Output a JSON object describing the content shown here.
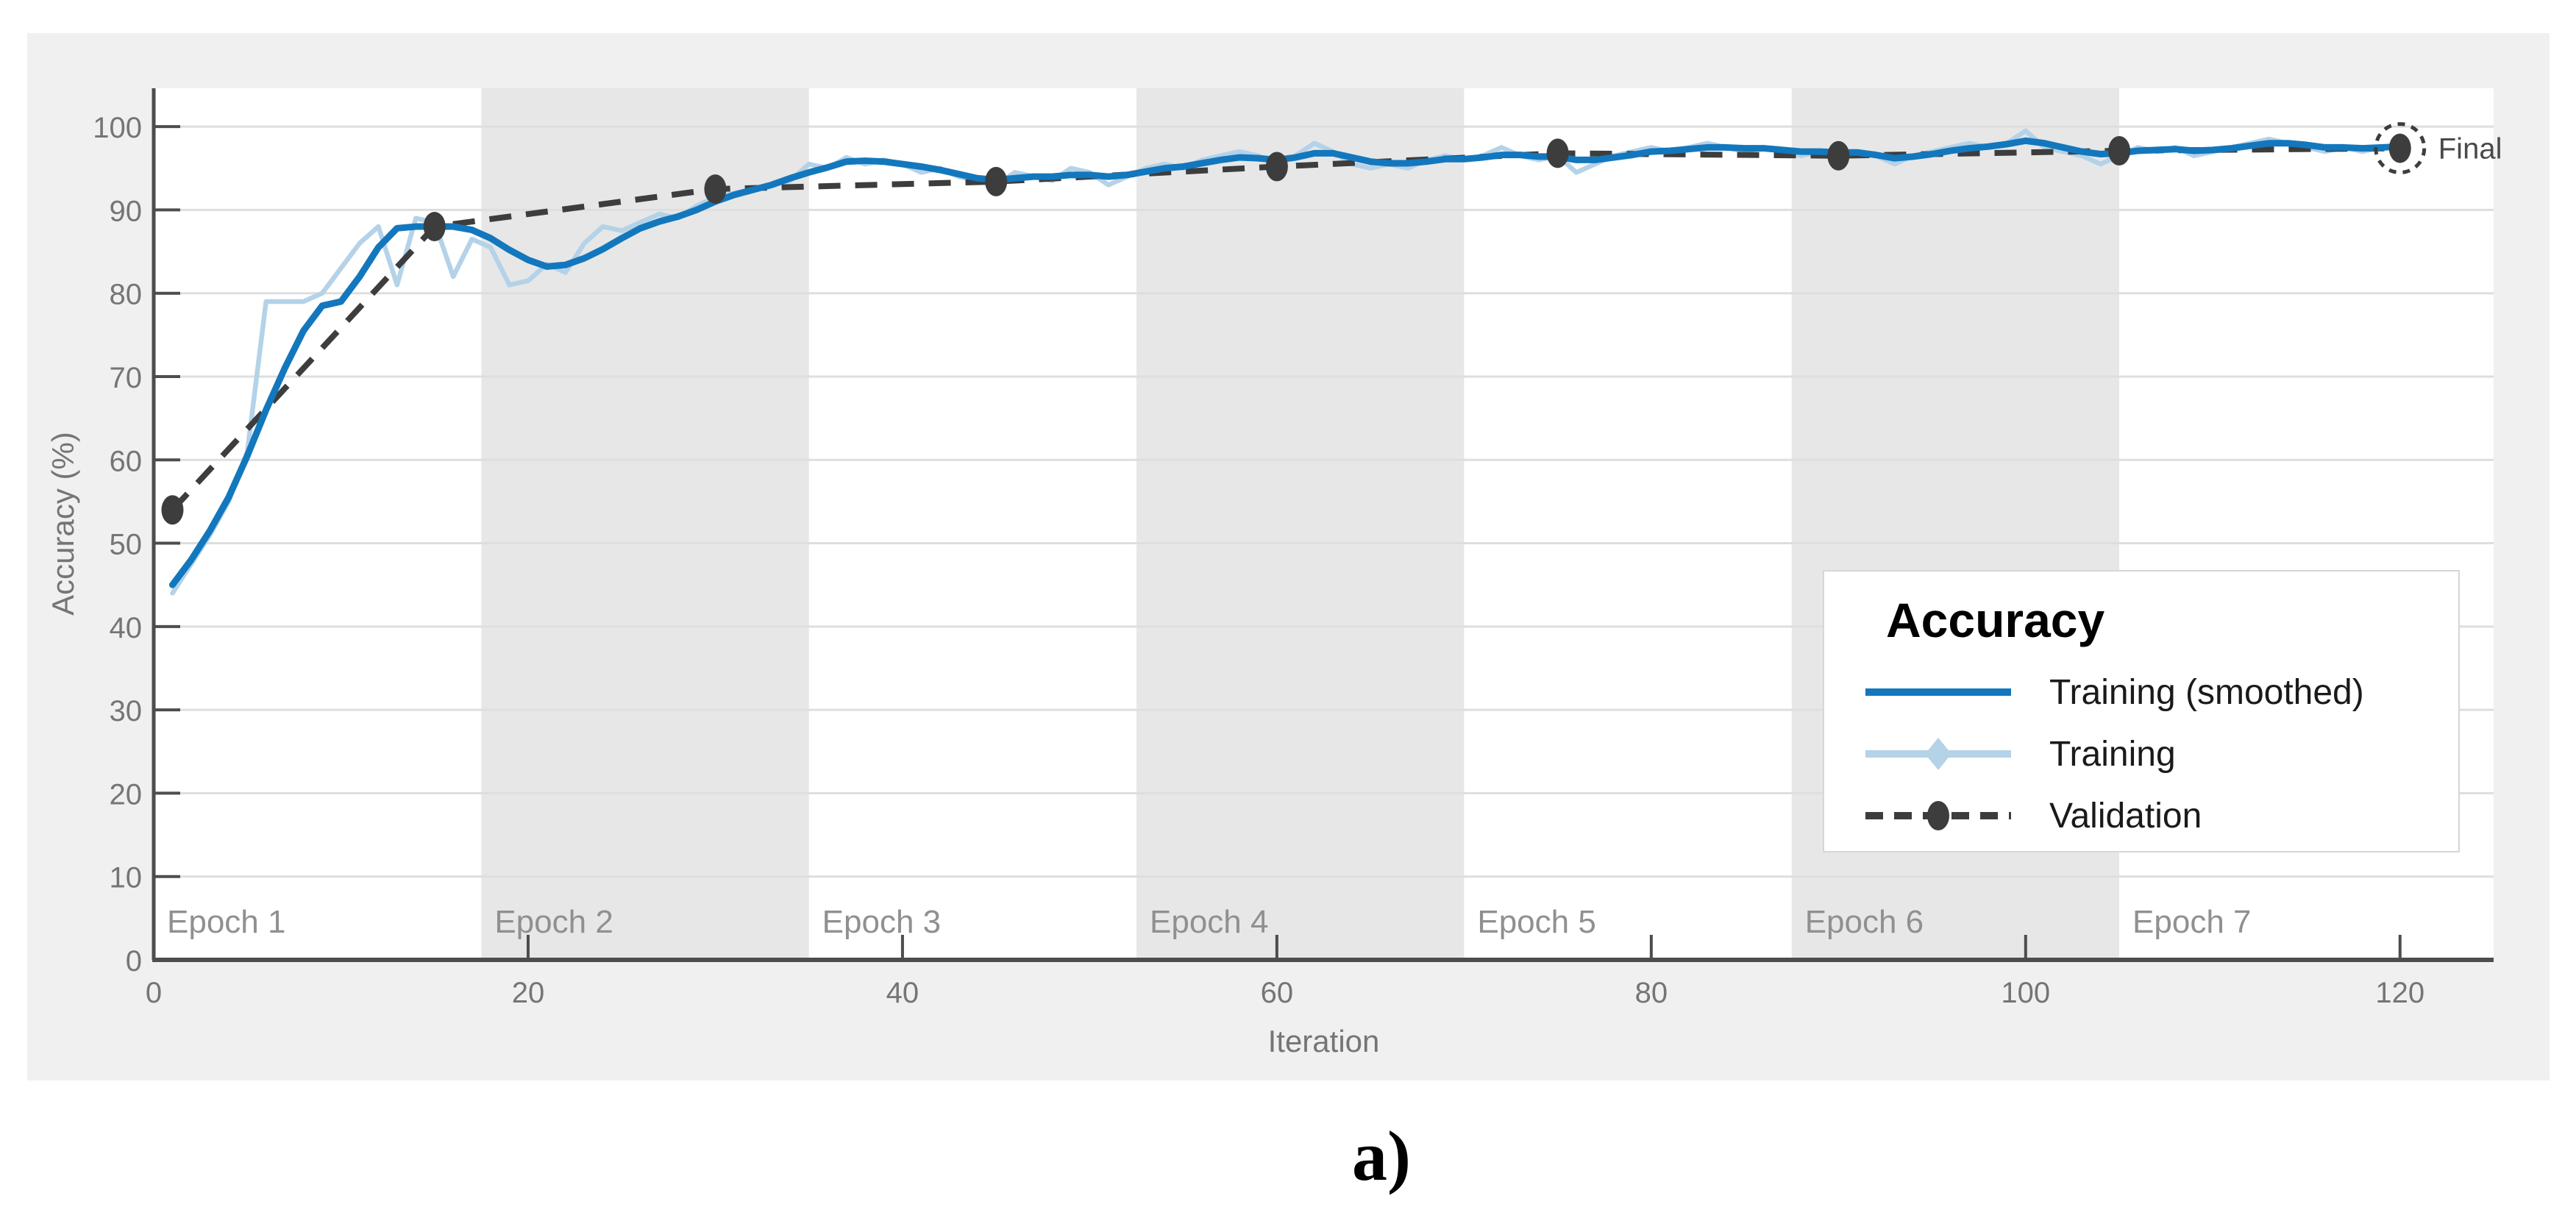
{
  "figure": {
    "caption": "a)"
  },
  "colors": {
    "panel_background": "#f0f0f0",
    "plot_background": "#ffffff",
    "epoch_band": "#e7e7e7",
    "gridline": "#dedede",
    "axis": "#4d4d4d",
    "tick_label": "#757575",
    "epoch_label": "#909090",
    "final_label": "#4a4a4a",
    "training_smoothed": "#1377bd",
    "training_raw": "#b4d2e8",
    "validation": "#3d3d3d"
  },
  "chart_data": {
    "type": "line",
    "title": "",
    "xlabel": "Iteration",
    "ylabel": "Accuracy (%)",
    "xlim": [
      0,
      125
    ],
    "ylim": [
      0,
      104.6
    ],
    "xticks": [
      0,
      20,
      40,
      60,
      80,
      100,
      120
    ],
    "yticks": [
      0,
      10,
      20,
      30,
      40,
      50,
      60,
      70,
      80,
      90,
      100
    ],
    "grid": "horizontal",
    "legend_position": "bottom-right",
    "epochs": [
      {
        "label": "Epoch 1",
        "start": 0,
        "end": 17.5,
        "shaded": false
      },
      {
        "label": "Epoch 2",
        "start": 17.5,
        "end": 35,
        "shaded": true
      },
      {
        "label": "Epoch 3",
        "start": 35,
        "end": 52.5,
        "shaded": false
      },
      {
        "label": "Epoch 4",
        "start": 52.5,
        "end": 70,
        "shaded": true
      },
      {
        "label": "Epoch 5",
        "start": 70,
        "end": 87.5,
        "shaded": false
      },
      {
        "label": "Epoch 6",
        "start": 87.5,
        "end": 105,
        "shaded": true
      },
      {
        "label": "Epoch 7",
        "start": 105,
        "end": 122.5,
        "shaded": false
      }
    ],
    "series": [
      {
        "name": "Training (smoothed)",
        "color": "#1377bd",
        "style": "solid",
        "x_start": 1,
        "x_step": 1,
        "values": [
          45,
          48,
          51.5,
          55.5,
          60.5,
          66,
          71,
          75.5,
          78.5,
          79,
          82,
          85.5,
          87.8,
          88,
          88,
          88,
          87.6,
          86.6,
          85.2,
          84,
          83.2,
          83.4,
          84.2,
          85.3,
          86.6,
          87.8,
          88.6,
          89.2,
          90,
          91,
          91.8,
          92.4,
          93,
          93.8,
          94.5,
          95.1,
          95.8,
          95.9,
          95.8,
          95.5,
          95.2,
          94.8,
          94.3,
          93.8,
          93.6,
          93.8,
          94,
          94,
          94.2,
          94.2,
          94,
          94.2,
          94.6,
          95,
          95.2,
          95.6,
          96,
          96.3,
          96.2,
          96,
          96.3,
          96.8,
          96.8,
          96.3,
          95.8,
          95.6,
          95.6,
          95.8,
          96.1,
          96.1,
          96.3,
          96.6,
          96.6,
          96.4,
          96.4,
          96,
          96,
          96.3,
          96.6,
          97,
          97.1,
          97.3,
          97.5,
          97.5,
          97.4,
          97.4,
          97.2,
          97,
          97,
          96.9,
          96.9,
          96.6,
          96.2,
          96.4,
          96.7,
          97.1,
          97.4,
          97.6,
          97.9,
          98.3,
          98,
          97.5,
          97,
          96.7,
          96.8,
          97.1,
          97.2,
          97.3,
          97.1,
          97.2,
          97.4,
          97.7,
          98,
          98,
          97.8,
          97.5,
          97.5,
          97.4,
          97.5,
          97.6
        ]
      },
      {
        "name": "Training",
        "color": "#b4d2e8",
        "style": "solid",
        "x_start": 1,
        "x_step": 1,
        "values": [
          44,
          47.5,
          51,
          55,
          61,
          79,
          79,
          79,
          80,
          83,
          86,
          88,
          81,
          89,
          88.5,
          82,
          86.5,
          85.5,
          81,
          81.5,
          83.5,
          82.5,
          86,
          88,
          87.5,
          88.5,
          89.5,
          89,
          90.5,
          91.5,
          92,
          92.5,
          93,
          93.5,
          95.5,
          95,
          96.3,
          95.5,
          96,
          95.5,
          94.5,
          95,
          94,
          93.5,
          93,
          94.5,
          94,
          93.5,
          95,
          94.5,
          93,
          94,
          95,
          95.5,
          95,
          96,
          96.5,
          97,
          96.5,
          95.5,
          96.5,
          98,
          97,
          95.5,
          95,
          95.5,
          95,
          96,
          96.5,
          96,
          96.5,
          97.5,
          96.5,
          96,
          96.5,
          94.5,
          95.5,
          96.5,
          97,
          97.5,
          97,
          97.5,
          98,
          97.5,
          97,
          97.5,
          97,
          96.5,
          97,
          96.5,
          97,
          96.5,
          95.5,
          96.5,
          97,
          97.5,
          98,
          97.5,
          98,
          99.5,
          97.5,
          97,
          96.5,
          95.5,
          96.5,
          97.5,
          97,
          97.5,
          96.5,
          97,
          97.5,
          98,
          98.5,
          98,
          97.5,
          97,
          97.5,
          97,
          97.5,
          97.6
        ]
      },
      {
        "name": "Validation",
        "color": "#3d3d3d",
        "style": "dashed",
        "x": [
          1,
          15,
          30,
          45,
          60,
          75,
          90,
          105,
          120
        ],
        "values": [
          54,
          88,
          92.5,
          93.4,
          95.2,
          96.8,
          96.5,
          97.1,
          97.4
        ]
      }
    ],
    "final_point": {
      "x": 120,
      "value": 97.4,
      "label": "Final"
    }
  },
  "legend": {
    "title": "Accuracy",
    "entries": [
      {
        "label": "Training (smoothed)",
        "sample": "solid-line"
      },
      {
        "label": "Training",
        "sample": "line-with-diamond-marker"
      },
      {
        "label": "Validation",
        "sample": "dashed-line-with-circle-marker"
      }
    ]
  }
}
